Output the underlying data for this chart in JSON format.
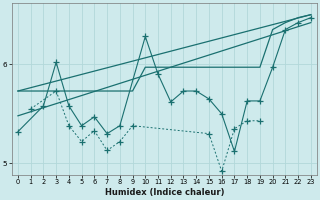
{
  "xlabel": "Humidex (Indice chaleur)",
  "bg_color": "#ceeaec",
  "line_color": "#1a7070",
  "grid_color": "#b2d8da",
  "xlim": [
    -0.5,
    23.5
  ],
  "ylim": [
    4.88,
    6.62
  ],
  "yticks": [
    5,
    6
  ],
  "xticks": [
    0,
    1,
    2,
    3,
    4,
    5,
    6,
    7,
    8,
    9,
    10,
    11,
    12,
    13,
    14,
    15,
    16,
    17,
    18,
    19,
    20,
    21,
    22,
    23
  ],
  "figsize": [
    3.2,
    2.0
  ],
  "dpi": 100,
  "line1_x": [
    0,
    1,
    2,
    3,
    4,
    5,
    6,
    7,
    8,
    9,
    10,
    11,
    12,
    13,
    14,
    15,
    16,
    17,
    18,
    19,
    20,
    21,
    22,
    23
  ],
  "line1_y": [
    5.73,
    5.73,
    5.73,
    5.73,
    5.73,
    5.73,
    5.73,
    5.73,
    5.73,
    5.73,
    5.97,
    5.97,
    5.97,
    5.97,
    5.97,
    5.97,
    5.97,
    5.97,
    5.97,
    5.97,
    6.35,
    6.42,
    6.47,
    6.5
  ],
  "line2_x": [
    0,
    23
  ],
  "line2_y": [
    5.48,
    6.42
  ],
  "line3_x": [
    0,
    23
  ],
  "line3_y": [
    5.73,
    6.5
  ],
  "zigzag_x": [
    0,
    2,
    3,
    4,
    5,
    6,
    7,
    8,
    10,
    11,
    12,
    13,
    14,
    15,
    16,
    17,
    18,
    19,
    20,
    21,
    22,
    23
  ],
  "zigzag_y": [
    5.32,
    5.58,
    6.02,
    5.58,
    5.38,
    5.47,
    5.3,
    5.38,
    6.28,
    5.9,
    5.62,
    5.73,
    5.73,
    5.65,
    5.5,
    5.12,
    5.63,
    5.63,
    5.97,
    6.35,
    6.42,
    6.47
  ],
  "dotted_x": [
    1,
    3,
    4,
    5,
    6,
    7,
    8,
    9,
    15,
    16,
    17,
    18,
    19
  ],
  "dotted_y": [
    5.55,
    5.73,
    5.38,
    5.22,
    5.33,
    5.13,
    5.22,
    5.38,
    5.3,
    4.92,
    5.35,
    5.43,
    5.43
  ]
}
